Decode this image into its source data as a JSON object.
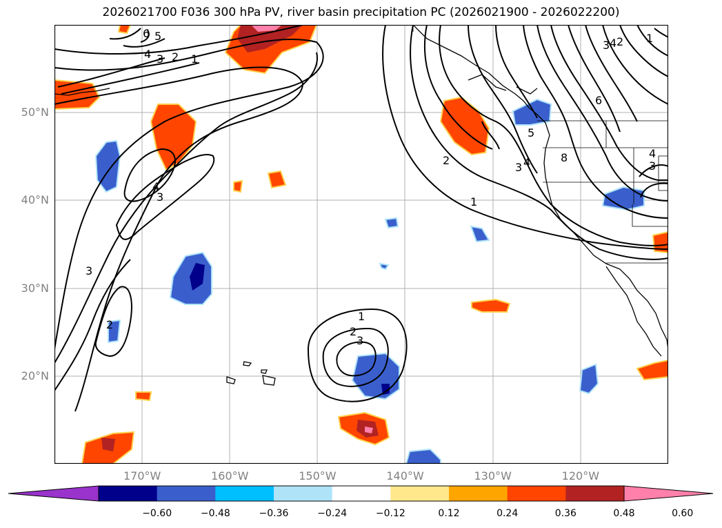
{
  "title": "2026021700 F036 300 hPa PV, river basin precipitation PC (2026021900 - 2026022200)",
  "lat_labels": [
    {
      "text": "50°N",
      "lat": 50
    },
    {
      "text": "40°N",
      "lat": 40
    },
    {
      "text": "30°N",
      "lat": 30
    },
    {
      "text": "20°N",
      "lat": 20
    }
  ],
  "lon_labels": [
    {
      "text": "170°W",
      "lon": -170
    },
    {
      "text": "160°W",
      "lon": -160
    },
    {
      "text": "150°W",
      "lon": -150
    },
    {
      "text": "140°W",
      "lon": -140
    },
    {
      "text": "130°W",
      "lon": -130
    },
    {
      "text": "120°W",
      "lon": -120
    }
  ],
  "map_extent": {
    "lon_min": -180,
    "lon_max": -110,
    "lat_min": 10,
    "lat_max": 60
  },
  "colorbar": {
    "colors": [
      "#9933cc",
      "#00008b",
      "#3a5fcd",
      "#00bfff",
      "#aee3f8",
      "#ffffff",
      "#ffe88c",
      "#ffa500",
      "#ff4500",
      "#b22222",
      "#ff80aa"
    ],
    "tick_labels": [
      "−0.60",
      "−0.48",
      "−0.36",
      "−0.24",
      "−0.12",
      "0.12",
      "0.24",
      "0.36",
      "0.48",
      "0.60"
    ]
  },
  "contour_labels": [
    "1",
    "2",
    "3",
    "4",
    "5",
    "6",
    "1",
    "2",
    "3",
    "4",
    "5",
    "6",
    "8",
    "1",
    "2",
    "3",
    "2",
    "3",
    "3",
    "4"
  ]
}
